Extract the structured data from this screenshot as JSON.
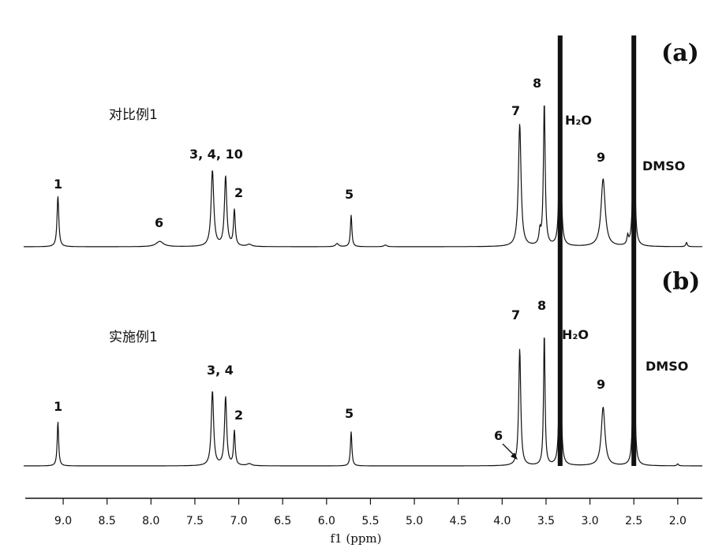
{
  "chart_data": {
    "type": "line",
    "x_axis": {
      "label": "f1 (ppm)",
      "reversed": true,
      "xlim": [
        9.45,
        1.72
      ],
      "ticks": [
        "9.0",
        "8.5",
        "8.0",
        "7.5",
        "7.0",
        "6.5",
        "6.0",
        "5.5",
        "5.0",
        "4.5",
        "4.0",
        "3.5",
        "3.0",
        "2.5",
        "2.0"
      ],
      "tick_values": [
        9.0,
        8.5,
        8.0,
        7.5,
        7.0,
        6.5,
        6.0,
        5.5,
        5.0,
        4.5,
        4.0,
        3.5,
        3.0,
        2.5,
        2.0
      ]
    },
    "grid": false,
    "panels": [
      {
        "tag": "(a)",
        "sample": "对比例1",
        "peaks": [
          {
            "ppm": 9.06,
            "height": 0.24,
            "width": 0.012,
            "label": "1"
          },
          {
            "ppm": 7.9,
            "height": 0.025,
            "width": 0.05,
            "label": "6"
          },
          {
            "ppm": 7.3,
            "height": 0.36,
            "width": 0.018,
            "label": "3, 4, 10"
          },
          {
            "ppm": 7.15,
            "height": 0.33,
            "width": 0.016,
            "label": ""
          },
          {
            "ppm": 7.05,
            "height": 0.17,
            "width": 0.012,
            "label": "2"
          },
          {
            "ppm": 6.88,
            "height": 0.01,
            "width": 0.03,
            "label": ""
          },
          {
            "ppm": 5.88,
            "height": 0.015,
            "width": 0.02,
            "label": ""
          },
          {
            "ppm": 5.72,
            "height": 0.15,
            "width": 0.01,
            "label": "5"
          },
          {
            "ppm": 5.33,
            "height": 0.008,
            "width": 0.02,
            "label": ""
          },
          {
            "ppm": 3.8,
            "height": 0.58,
            "width": 0.018,
            "label": "7"
          },
          {
            "ppm": 3.57,
            "height": 0.06,
            "width": 0.012,
            "label": ""
          },
          {
            "ppm": 3.52,
            "height": 0.68,
            "width": 0.012,
            "label": "8"
          },
          {
            "ppm": 3.34,
            "height": 1.0,
            "width": 0.01,
            "label": "H₂O"
          },
          {
            "ppm": 2.85,
            "height": 0.32,
            "width": 0.028,
            "label": "9"
          },
          {
            "ppm": 2.57,
            "height": 0.04,
            "width": 0.01,
            "label": ""
          },
          {
            "ppm": 2.5,
            "height": 1.0,
            "width": 0.01,
            "label": "DMSO"
          },
          {
            "ppm": 1.9,
            "height": 0.02,
            "width": 0.01,
            "label": ""
          }
        ]
      },
      {
        "tag": "(b)",
        "sample": "实施例1",
        "peaks": [
          {
            "ppm": 9.06,
            "height": 0.22,
            "width": 0.01,
            "label": "1"
          },
          {
            "ppm": 7.3,
            "height": 0.37,
            "width": 0.016,
            "label": "3, 4"
          },
          {
            "ppm": 7.15,
            "height": 0.34,
            "width": 0.015,
            "label": ""
          },
          {
            "ppm": 7.05,
            "height": 0.17,
            "width": 0.011,
            "label": "2"
          },
          {
            "ppm": 6.88,
            "height": 0.01,
            "width": 0.03,
            "label": ""
          },
          {
            "ppm": 5.72,
            "height": 0.17,
            "width": 0.01,
            "label": "5"
          },
          {
            "ppm": 3.8,
            "height": 0.58,
            "width": 0.014,
            "label": "7"
          },
          {
            "ppm": 3.52,
            "height": 0.66,
            "width": 0.01,
            "label": "8"
          },
          {
            "ppm": 3.34,
            "height": 1.0,
            "width": 0.01,
            "label": "H₂O"
          },
          {
            "ppm": 2.85,
            "height": 0.29,
            "width": 0.025,
            "label": "9"
          },
          {
            "ppm": 2.5,
            "height": 1.0,
            "width": 0.01,
            "label": "DMSO"
          },
          {
            "ppm": 2.0,
            "height": 0.01,
            "width": 0.01,
            "label": ""
          }
        ],
        "annotations": [
          {
            "text": "6",
            "ppm": 3.83,
            "arrow": true
          }
        ]
      }
    ]
  }
}
